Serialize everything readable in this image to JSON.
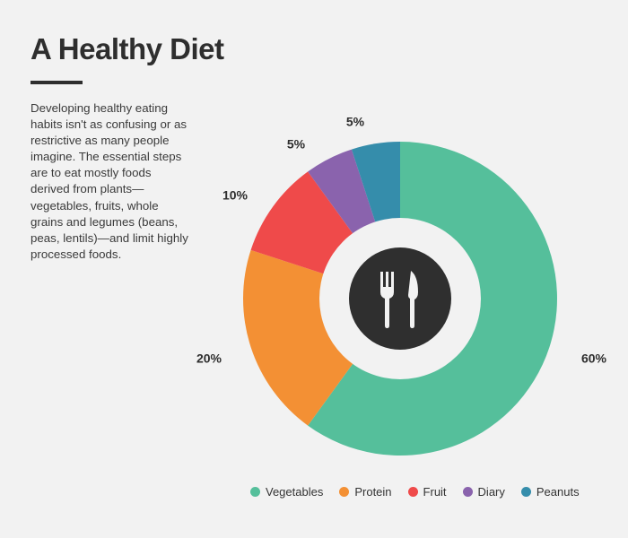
{
  "title": "A Healthy Diet",
  "description": "Developing healthy eating habits isn't as confusing or as restrictive as many people imagine. The essential steps are to eat mostly foods derived from plants—vegetables, fruits, whole grains and legumes (beans, peas, lentils)—and limit highly processed foods.",
  "center_icon": "fork-knife-icon",
  "chart_data": {
    "type": "pie",
    "variant": "donut",
    "categories": [
      "Vegetables",
      "Protein",
      "Fruit",
      "Diary",
      "Peanuts"
    ],
    "values": [
      60,
      20,
      10,
      5,
      5
    ],
    "data_labels": [
      "60%",
      "20%",
      "10%",
      "5%",
      "5%"
    ],
    "colors": [
      "#55bf9b",
      "#f39034",
      "#ef4a4a",
      "#8a63ad",
      "#358dab"
    ],
    "start": "top",
    "direction": "clockwise",
    "legend": "bottom"
  }
}
